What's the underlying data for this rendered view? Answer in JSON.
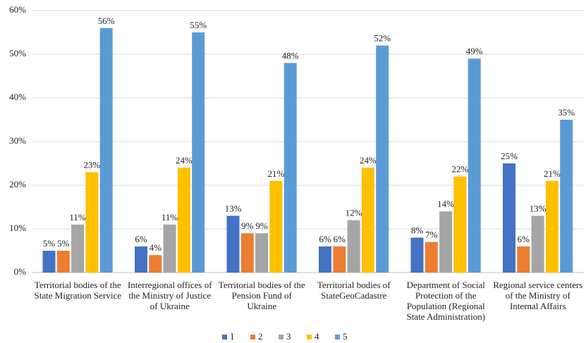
{
  "chart_data": {
    "type": "bar",
    "categories": [
      "Territorial bodies of the State Migration Service",
      "Interregional offices of the Ministry of Justice of Ukraine",
      "Territorial bodies of the Pension Fund of Ukraine",
      "Territorial bodies of StateGeoCadastre",
      "Department of Social Protection of the Population (Regional State Administration)",
      "Regional service centers of the Ministry of Internal Affairs"
    ],
    "series": [
      {
        "name": "1",
        "color": "#4472c4",
        "values": [
          5,
          6,
          13,
          6,
          8,
          25
        ],
        "value_labels": [
          "5%",
          "6%",
          "13%",
          "6%",
          "8%",
          "25%"
        ]
      },
      {
        "name": "2",
        "color": "#ed7d31",
        "values": [
          5,
          4,
          9,
          6,
          7,
          6
        ],
        "value_labels": [
          "5%",
          "4%",
          "9%",
          "6%",
          "7%",
          "6%"
        ]
      },
      {
        "name": "3",
        "color": "#a5a5a5",
        "values": [
          11,
          11,
          9,
          12,
          14,
          13
        ],
        "value_labels": [
          "11%",
          "11%",
          "9%",
          "12%",
          "14%",
          "13%"
        ]
      },
      {
        "name": "4",
        "color": "#ffc000",
        "values": [
          23,
          24,
          21,
          24,
          22,
          21
        ],
        "value_labels": [
          "23%",
          "24%",
          "21%",
          "24%",
          "22%",
          "21%"
        ]
      },
      {
        "name": "5",
        "color": "#5b9bd5",
        "values": [
          56,
          55,
          48,
          52,
          49,
          35
        ],
        "value_labels": [
          "56%",
          "55%",
          "48%",
          "52%",
          "49%",
          "35%"
        ]
      }
    ],
    "ylim": [
      0,
      60
    ],
    "yticks": [
      {
        "value": 0,
        "label": "0%"
      },
      {
        "value": 10,
        "label": "10%"
      },
      {
        "value": 20,
        "label": "20%"
      },
      {
        "value": 30,
        "label": "30%"
      },
      {
        "value": 40,
        "label": "40%"
      },
      {
        "value": 50,
        "label": "50%"
      },
      {
        "value": 60,
        "label": "60%"
      }
    ],
    "grid": true,
    "legend": "bottom"
  }
}
